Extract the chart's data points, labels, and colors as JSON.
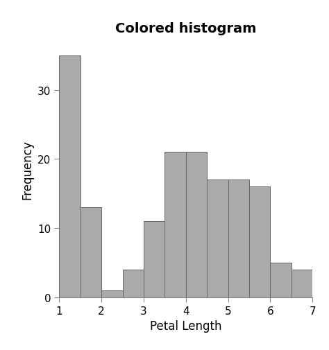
{
  "title": "Colored histogram",
  "xlabel": "Petal Length",
  "ylabel": "Frequency",
  "bar_left_edges": [
    1.0,
    1.5,
    2.0,
    2.5,
    3.0,
    3.5,
    4.0,
    4.5,
    5.0,
    5.5,
    6.0,
    6.5
  ],
  "bar_heights": [
    35,
    13,
    1,
    4,
    11,
    21,
    21,
    17,
    17,
    16,
    5,
    4
  ],
  "bar_width": 0.5,
  "bar_color": "#aaaaaa",
  "bar_edgecolor": "#666666",
  "xlim": [
    1,
    7
  ],
  "ylim": [
    0,
    37
  ],
  "xticks": [
    1,
    2,
    3,
    4,
    5,
    6,
    7
  ],
  "yticks": [
    0,
    10,
    20,
    30
  ],
  "title_fontsize": 14,
  "label_fontsize": 12,
  "tick_fontsize": 11,
  "background_color": "#ffffff",
  "figsize": [
    4.74,
    5.06
  ],
  "dpi": 100
}
